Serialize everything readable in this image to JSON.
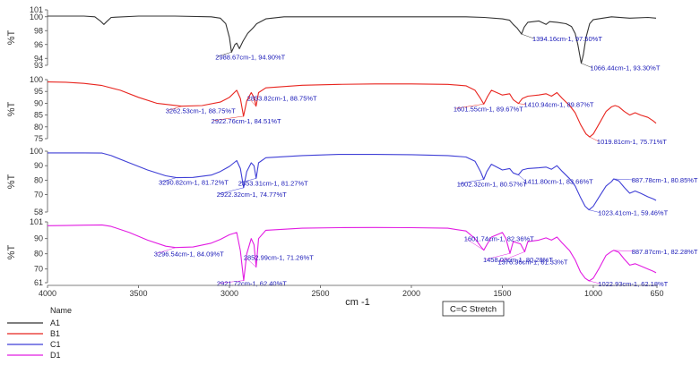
{
  "chart_data": {
    "type": "line",
    "xlabel": "cm -1",
    "x_ticks": [
      4000,
      3500,
      3000,
      2500,
      2000,
      1500,
      1000,
      650
    ],
    "xlim": [
      4000,
      650
    ],
    "x_reversed": true,
    "grid": false,
    "legend_title": "Name",
    "legend_position": "bottom-left",
    "callout": "C=C Stretch",
    "panels": [
      {
        "name": "A1",
        "color": "#333333",
        "ylabel": "%T",
        "ylim": [
          93,
          101
        ],
        "yticks": [
          93,
          94,
          96,
          98,
          100,
          101
        ],
        "points": [
          [
            4000,
            100.1
          ],
          [
            3900,
            100.1
          ],
          [
            3800,
            100.1
          ],
          [
            3740,
            100.0
          ],
          [
            3710,
            99.4
          ],
          [
            3690,
            98.9
          ],
          [
            3675,
            99.3
          ],
          [
            3650,
            99.9
          ],
          [
            3500,
            100.1
          ],
          [
            3300,
            100.1
          ],
          [
            3100,
            100.0
          ],
          [
            3050,
            99.8
          ],
          [
            3020,
            99.0
          ],
          [
            3000,
            97.0
          ],
          [
            2988.67,
            94.9
          ],
          [
            2970,
            96.0
          ],
          [
            2960,
            96.2
          ],
          [
            2945,
            95.4
          ],
          [
            2925,
            96.5
          ],
          [
            2900,
            97.6
          ],
          [
            2870,
            98.4
          ],
          [
            2850,
            99.0
          ],
          [
            2800,
            99.7
          ],
          [
            2700,
            100.0
          ],
          [
            2500,
            100.0
          ],
          [
            2300,
            100.0
          ],
          [
            2100,
            100.0
          ],
          [
            1900,
            100.0
          ],
          [
            1700,
            100.0
          ],
          [
            1600,
            99.9
          ],
          [
            1500,
            99.7
          ],
          [
            1460,
            99.5
          ],
          [
            1440,
            98.9
          ],
          [
            1420,
            98.4
          ],
          [
            1394.16,
            97.5
          ],
          [
            1380,
            98.5
          ],
          [
            1360,
            99.2
          ],
          [
            1300,
            99.4
          ],
          [
            1260,
            98.9
          ],
          [
            1240,
            99.3
          ],
          [
            1200,
            99.2
          ],
          [
            1150,
            99.0
          ],
          [
            1120,
            98.6
          ],
          [
            1100,
            97.6
          ],
          [
            1085,
            96.0
          ],
          [
            1066.44,
            93.3
          ],
          [
            1055,
            94.5
          ],
          [
            1040,
            97.0
          ],
          [
            1020,
            99.0
          ],
          [
            1000,
            99.6
          ],
          [
            900,
            100.0
          ],
          [
            800,
            99.8
          ],
          [
            700,
            99.9
          ],
          [
            655,
            99.8
          ]
        ],
        "labels": [
          {
            "x": 2988.67,
            "y": 94.9,
            "text": "2988.67cm-1, 94.90%T"
          },
          {
            "x": 1394.16,
            "y": 97.5,
            "text": "1394.16cm-1, 97.50%T"
          },
          {
            "x": 1066.44,
            "y": 93.3,
            "text": "1066.44cm-1, 93.30%T"
          }
        ]
      },
      {
        "name": "B1",
        "color": "#e8251f",
        "ylabel": "%T",
        "ylim": [
          75,
          100
        ],
        "yticks": [
          75,
          80,
          85,
          90,
          95,
          100
        ],
        "points": [
          [
            4000,
            99.0
          ],
          [
            3900,
            98.9
          ],
          [
            3800,
            98.4
          ],
          [
            3700,
            97.5
          ],
          [
            3600,
            95.5
          ],
          [
            3500,
            92.5
          ],
          [
            3400,
            90.0
          ],
          [
            3262.53,
            88.75
          ],
          [
            3150,
            89.0
          ],
          [
            3050,
            90.5
          ],
          [
            3000,
            92.5
          ],
          [
            2960,
            95.5
          ],
          [
            2940,
            92.0
          ],
          [
            2922.76,
            84.51
          ],
          [
            2905,
            91.0
          ],
          [
            2880,
            94.5
          ],
          [
            2865,
            92.5
          ],
          [
            2853.82,
            88.75
          ],
          [
            2840,
            94.5
          ],
          [
            2800,
            96.5
          ],
          [
            2600,
            97.6
          ],
          [
            2400,
            98.0
          ],
          [
            2200,
            98.2
          ],
          [
            2000,
            98.2
          ],
          [
            1800,
            98.0
          ],
          [
            1700,
            97.4
          ],
          [
            1650,
            95.5
          ],
          [
            1620,
            92.0
          ],
          [
            1601.55,
            89.67
          ],
          [
            1580,
            93.0
          ],
          [
            1560,
            95.5
          ],
          [
            1500,
            93.5
          ],
          [
            1460,
            94.0
          ],
          [
            1440,
            91.5
          ],
          [
            1410.94,
            89.87
          ],
          [
            1390,
            92.0
          ],
          [
            1360,
            93.0
          ],
          [
            1300,
            93.5
          ],
          [
            1260,
            94.0
          ],
          [
            1230,
            93.0
          ],
          [
            1200,
            94.5
          ],
          [
            1170,
            92.0
          ],
          [
            1130,
            89.0
          ],
          [
            1100,
            86.0
          ],
          [
            1070,
            81.0
          ],
          [
            1040,
            77.0
          ],
          [
            1019.81,
            75.71
          ],
          [
            1000,
            77.0
          ],
          [
            970,
            81.0
          ],
          [
            930,
            86.5
          ],
          [
            900,
            88.5
          ],
          [
            880,
            89.0
          ],
          [
            860,
            88.5
          ],
          [
            830,
            86.5
          ],
          [
            800,
            85.0
          ],
          [
            770,
            86.0
          ],
          [
            740,
            85.0
          ],
          [
            700,
            84.0
          ],
          [
            670,
            82.5
          ],
          [
            655,
            81.5
          ]
        ],
        "labels": [
          {
            "x": 3262.53,
            "y": 88.75,
            "text": "3262.53cm-1, 88.75%T"
          },
          {
            "x": 2922.76,
            "y": 84.51,
            "text": "2922.76cm-1, 84.51%T"
          },
          {
            "x": 2853.82,
            "y": 88.75,
            "text": "2853.82cm-1, 88.75%T"
          },
          {
            "x": 1601.55,
            "y": 89.67,
            "text": "1601.55cm-1, 89.67%T"
          },
          {
            "x": 1410.94,
            "y": 89.87,
            "text": "1410.94cm-1, 89.87%T"
          },
          {
            "x": 1019.81,
            "y": 75.71,
            "text": "1019.81cm-1, 75.71%T"
          }
        ]
      },
      {
        "name": "C1",
        "color": "#3f3fd6",
        "ylabel": "%T",
        "ylim": [
          58,
          100
        ],
        "yticks": [
          58,
          70,
          80,
          90,
          100
        ],
        "points": [
          [
            4000,
            98.8
          ],
          [
            3900,
            98.8
          ],
          [
            3800,
            98.8
          ],
          [
            3700,
            98.7
          ],
          [
            3650,
            97.0
          ],
          [
            3550,
            92.0
          ],
          [
            3450,
            87.0
          ],
          [
            3350,
            83.0
          ],
          [
            3290.82,
            81.72
          ],
          [
            3200,
            81.9
          ],
          [
            3100,
            83.5
          ],
          [
            3050,
            86.0
          ],
          [
            3000,
            89.5
          ],
          [
            2960,
            93.5
          ],
          [
            2940,
            88.0
          ],
          [
            2922.32,
            74.77
          ],
          [
            2905,
            86.0
          ],
          [
            2880,
            92.0
          ],
          [
            2865,
            90.0
          ],
          [
            2853.31,
            81.27
          ],
          [
            2840,
            92.0
          ],
          [
            2800,
            95.5
          ],
          [
            2600,
            97.0
          ],
          [
            2400,
            97.8
          ],
          [
            2200,
            97.8
          ],
          [
            2000,
            97.6
          ],
          [
            1800,
            97.0
          ],
          [
            1700,
            96.0
          ],
          [
            1650,
            93.0
          ],
          [
            1620,
            86.0
          ],
          [
            1602.32,
            80.57
          ],
          [
            1585,
            86.0
          ],
          [
            1560,
            91.0
          ],
          [
            1500,
            87.0
          ],
          [
            1460,
            88.0
          ],
          [
            1440,
            85.0
          ],
          [
            1411.8,
            83.66
          ],
          [
            1390,
            87.0
          ],
          [
            1360,
            88.0
          ],
          [
            1300,
            88.5
          ],
          [
            1260,
            89.0
          ],
          [
            1230,
            87.5
          ],
          [
            1200,
            90.0
          ],
          [
            1170,
            86.0
          ],
          [
            1130,
            81.0
          ],
          [
            1100,
            76.0
          ],
          [
            1070,
            68.0
          ],
          [
            1045,
            62.0
          ],
          [
            1023.41,
            59.46
          ],
          [
            1000,
            62.0
          ],
          [
            970,
            68.0
          ],
          [
            930,
            76.0
          ],
          [
            900,
            79.0
          ],
          [
            887.78,
            80.85
          ],
          [
            860,
            79.5
          ],
          [
            830,
            75.0
          ],
          [
            800,
            71.0
          ],
          [
            770,
            72.5
          ],
          [
            740,
            71.0
          ],
          [
            700,
            68.5
          ],
          [
            670,
            67.0
          ],
          [
            655,
            66.0
          ]
        ],
        "labels": [
          {
            "x": 3290.82,
            "y": 81.72,
            "text": "3290.82cm-1, 81.72%T"
          },
          {
            "x": 2922.32,
            "y": 74.77,
            "text": "2922.32cm-1, 74.77%T"
          },
          {
            "x": 2853.31,
            "y": 81.27,
            "text": "2853.31cm-1, 81.27%T"
          },
          {
            "x": 1602.32,
            "y": 80.57,
            "text": "1602.32cm-1, 80.57%T"
          },
          {
            "x": 1411.8,
            "y": 83.66,
            "text": "1411.80cm-1, 83.66%T"
          },
          {
            "x": 887.78,
            "y": 80.85,
            "text": "887.78cm-1, 80.85%T"
          },
          {
            "x": 1023.41,
            "y": 59.46,
            "text": "1023.41cm-1, 59.46%T"
          }
        ]
      },
      {
        "name": "D1",
        "color": "#e21ce2",
        "ylabel": "%T",
        "ylim": [
          61,
          101
        ],
        "yticks": [
          61,
          70,
          80,
          90,
          101
        ],
        "points": [
          [
            4000,
            98.5
          ],
          [
            3900,
            98.6
          ],
          [
            3800,
            98.8
          ],
          [
            3700,
            99.0
          ],
          [
            3650,
            98.0
          ],
          [
            3550,
            94.0
          ],
          [
            3450,
            89.0
          ],
          [
            3350,
            85.0
          ],
          [
            3296.54,
            84.09
          ],
          [
            3200,
            84.5
          ],
          [
            3100,
            87.0
          ],
          [
            3050,
            89.5
          ],
          [
            3000,
            92.5
          ],
          [
            2960,
            94.0
          ],
          [
            2940,
            82.0
          ],
          [
            2921.72,
            62.4
          ],
          [
            2905,
            80.0
          ],
          [
            2880,
            90.0
          ],
          [
            2865,
            86.0
          ],
          [
            2852.99,
            71.26
          ],
          [
            2840,
            90.0
          ],
          [
            2800,
            95.5
          ],
          [
            2600,
            96.8
          ],
          [
            2400,
            97.2
          ],
          [
            2200,
            97.3
          ],
          [
            2000,
            97.2
          ],
          [
            1800,
            96.8
          ],
          [
            1700,
            95.0
          ],
          [
            1650,
            90.0
          ],
          [
            1620,
            85.0
          ],
          [
            1601.74,
            82.36
          ],
          [
            1585,
            86.0
          ],
          [
            1560,
            91.0
          ],
          [
            1500,
            94.0
          ],
          [
            1480,
            90.0
          ],
          [
            1458.03,
            80.28
          ],
          [
            1440,
            88.0
          ],
          [
            1400,
            86.5
          ],
          [
            1376.96,
            81.33
          ],
          [
            1360,
            88.0
          ],
          [
            1300,
            89.0
          ],
          [
            1260,
            90.5
          ],
          [
            1230,
            89.0
          ],
          [
            1200,
            91.0
          ],
          [
            1170,
            87.0
          ],
          [
            1130,
            82.0
          ],
          [
            1100,
            76.0
          ],
          [
            1070,
            68.0
          ],
          [
            1045,
            64.0
          ],
          [
            1022.93,
            62.18
          ],
          [
            1000,
            64.0
          ],
          [
            970,
            70.0
          ],
          [
            930,
            79.0
          ],
          [
            900,
            81.5
          ],
          [
            887.87,
            82.28
          ],
          [
            860,
            81.0
          ],
          [
            830,
            76.5
          ],
          [
            800,
            72.5
          ],
          [
            770,
            73.5
          ],
          [
            740,
            72.0
          ],
          [
            700,
            70.0
          ],
          [
            670,
            68.5
          ],
          [
            655,
            67.5
          ]
        ],
        "labels": [
          {
            "x": 3296.54,
            "y": 84.09,
            "text": "3296.54cm-1, 84.09%T"
          },
          {
            "x": 2921.72,
            "y": 62.4,
            "text": "2921.72cm-1, 62.40%T"
          },
          {
            "x": 2852.99,
            "y": 71.26,
            "text": "2852.99cm-1, 71.26%T"
          },
          {
            "x": 1601.74,
            "y": 82.36,
            "text": "1601.74cm-1, 82.36%T"
          },
          {
            "x": 1458.03,
            "y": 80.28,
            "text": "1458.03cm-1, 80.28%T"
          },
          {
            "x": 1376.96,
            "y": 81.33,
            "text": "1376.96cm-1, 81.33%T"
          },
          {
            "x": 887.87,
            "y": 82.28,
            "text": "887.87cm-1, 82.28%T"
          },
          {
            "x": 1022.93,
            "y": 62.18,
            "text": "1022.93cm-1, 62.18%T"
          }
        ]
      }
    ]
  }
}
